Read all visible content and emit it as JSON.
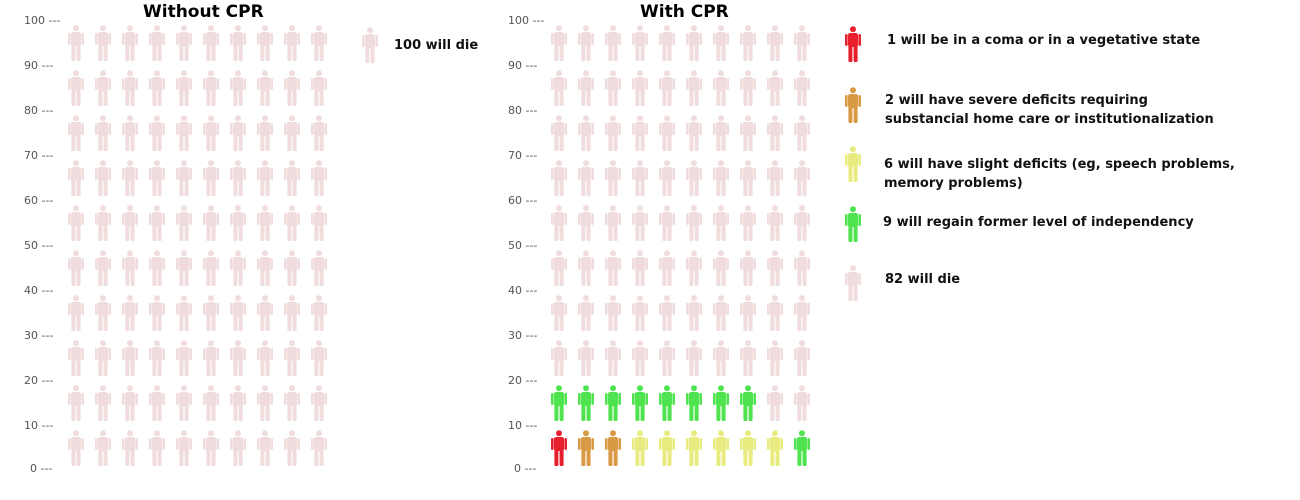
{
  "chart_data": [
    {
      "type": "pictograph",
      "title": "Without CPR",
      "yticks": [
        "100 ---",
        "90 ---",
        "80 ---",
        "70 ---",
        "60 ---",
        "50 ---",
        "40 ---",
        "30 ---",
        "20 ---",
        "10 ---",
        "0 ---"
      ],
      "total": 100,
      "categories": [
        {
          "label": "100 will die",
          "count": 100,
          "color": "#f0dcdc"
        }
      ]
    },
    {
      "type": "pictograph",
      "title": "With CPR",
      "yticks": [
        "100 ---",
        "90 ---",
        "80 ---",
        "70 ---",
        "60 ---",
        "50 ---",
        "40 ---",
        "30 ---",
        "20 ---",
        "10 ---",
        "0 ---"
      ],
      "total": 100,
      "categories": [
        {
          "label": "1 will be in a coma or in a vegetative state",
          "count": 1,
          "color": "#e8202e"
        },
        {
          "label": "2 will have severe deficits requiring substancial home care or institutionalization",
          "count": 2,
          "color": "#d99a45"
        },
        {
          "label": "6 will have slight deficits (eg, speech problems, memory problems)",
          "count": 6,
          "color": "#e8ec80"
        },
        {
          "label": "9 will regain former level of  independency",
          "count": 9,
          "color": "#4fe44f"
        },
        {
          "label": "82 will die",
          "count": 82,
          "color": "#f0dcdc"
        }
      ],
      "grid_order_bottom_row": [
        "#e8202e",
        "#d99a45",
        "#d99a45",
        "#e8ec80",
        "#e8ec80",
        "#e8ec80",
        "#e8ec80",
        "#e8ec80",
        "#e8ec80",
        "#4fe44f"
      ],
      "grid_order_second_row": [
        "#4fe44f",
        "#4fe44f",
        "#4fe44f",
        "#4fe44f",
        "#4fe44f",
        "#4fe44f",
        "#4fe44f",
        "#4fe44f",
        "#f0dcdc",
        "#f0dcdc"
      ]
    }
  ],
  "legend_left": {
    "label": "100 will die",
    "color": "#f0dcdc"
  },
  "legend_right": [
    {
      "lines": [
        "1 will be in a coma or in a vegetative state"
      ],
      "color": "#e8202e"
    },
    {
      "lines": [
        "2 will have severe deficits requiring",
        "substancial home care or institutionalization"
      ],
      "color": "#d99a45"
    },
    {
      "lines": [
        "6 will have slight deficits (eg, speech problems,",
        "memory problems)"
      ],
      "color": "#e8ec80"
    },
    {
      "lines": [
        "9 will regain former level of  independency"
      ],
      "color": "#4fe44f"
    },
    {
      "lines": [
        "82 will die"
      ],
      "color": "#f0dcdc"
    }
  ]
}
